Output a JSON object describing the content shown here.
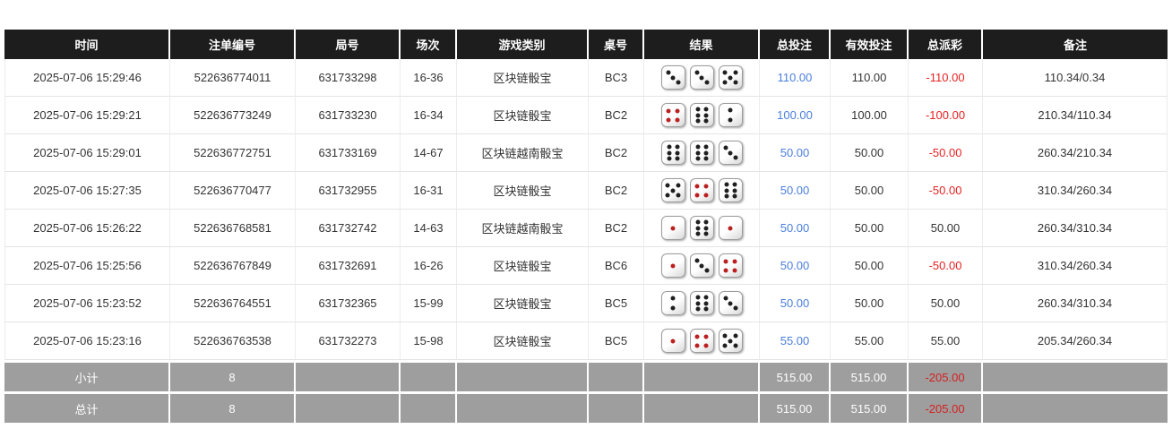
{
  "table": {
    "headers": [
      {
        "key": "time",
        "label": "时间"
      },
      {
        "key": "bet_id",
        "label": "注单编号"
      },
      {
        "key": "round_id",
        "label": "局号"
      },
      {
        "key": "session",
        "label": "场次"
      },
      {
        "key": "game_type",
        "label": "游戏类别"
      },
      {
        "key": "table_no",
        "label": "桌号"
      },
      {
        "key": "result",
        "label": "结果"
      },
      {
        "key": "total_bet",
        "label": "总投注"
      },
      {
        "key": "valid_bet",
        "label": "有效投注"
      },
      {
        "key": "payout",
        "label": "总派彩"
      },
      {
        "key": "remark",
        "label": "备注"
      }
    ],
    "rows": [
      {
        "time": "2025-07-06 15:29:46",
        "bet_id": "522636774011",
        "round_id": "631733298",
        "session": "16-36",
        "game_type": "区块链骰宝",
        "table_no": "BC3",
        "dice": [
          {
            "value": 3,
            "color": "black"
          },
          {
            "value": 3,
            "color": "black"
          },
          {
            "value": 5,
            "color": "black"
          }
        ],
        "total_bet": "110.00",
        "valid_bet": "110.00",
        "payout": "-110.00",
        "remark": "110.34/0.34"
      },
      {
        "time": "2025-07-06 15:29:21",
        "bet_id": "522636773249",
        "round_id": "631733230",
        "session": "16-34",
        "game_type": "区块链骰宝",
        "table_no": "BC2",
        "dice": [
          {
            "value": 4,
            "color": "red"
          },
          {
            "value": 6,
            "color": "black"
          },
          {
            "value": 2,
            "color": "black"
          }
        ],
        "total_bet": "100.00",
        "valid_bet": "100.00",
        "payout": "-100.00",
        "remark": "210.34/110.34"
      },
      {
        "time": "2025-07-06 15:29:01",
        "bet_id": "522636772751",
        "round_id": "631733169",
        "session": "14-67",
        "game_type": "区块链越南骰宝",
        "table_no": "BC2",
        "dice": [
          {
            "value": 6,
            "color": "black"
          },
          {
            "value": 6,
            "color": "black"
          },
          {
            "value": 3,
            "color": "black"
          }
        ],
        "total_bet": "50.00",
        "valid_bet": "50.00",
        "payout": "-50.00",
        "remark": "260.34/210.34"
      },
      {
        "time": "2025-07-06 15:27:35",
        "bet_id": "522636770477",
        "round_id": "631732955",
        "session": "16-31",
        "game_type": "区块链骰宝",
        "table_no": "BC2",
        "dice": [
          {
            "value": 5,
            "color": "black"
          },
          {
            "value": 4,
            "color": "red"
          },
          {
            "value": 6,
            "color": "black"
          }
        ],
        "total_bet": "50.00",
        "valid_bet": "50.00",
        "payout": "-50.00",
        "remark": "310.34/260.34"
      },
      {
        "time": "2025-07-06 15:26:22",
        "bet_id": "522636768581",
        "round_id": "631732742",
        "session": "14-63",
        "game_type": "区块链越南骰宝",
        "table_no": "BC2",
        "dice": [
          {
            "value": 1,
            "color": "red"
          },
          {
            "value": 6,
            "color": "black"
          },
          {
            "value": 1,
            "color": "red"
          }
        ],
        "total_bet": "50.00",
        "valid_bet": "50.00",
        "payout": "50.00",
        "remark": "260.34/310.34"
      },
      {
        "time": "2025-07-06 15:25:56",
        "bet_id": "522636767849",
        "round_id": "631732691",
        "session": "16-26",
        "game_type": "区块链骰宝",
        "table_no": "BC6",
        "dice": [
          {
            "value": 1,
            "color": "red"
          },
          {
            "value": 3,
            "color": "black"
          },
          {
            "value": 4,
            "color": "red"
          }
        ],
        "total_bet": "50.00",
        "valid_bet": "50.00",
        "payout": "-50.00",
        "remark": "310.34/260.34"
      },
      {
        "time": "2025-07-06 15:23:52",
        "bet_id": "522636764551",
        "round_id": "631732365",
        "session": "15-99",
        "game_type": "区块链骰宝",
        "table_no": "BC5",
        "dice": [
          {
            "value": 2,
            "color": "black"
          },
          {
            "value": 6,
            "color": "black"
          },
          {
            "value": 3,
            "color": "black"
          }
        ],
        "total_bet": "50.00",
        "valid_bet": "50.00",
        "payout": "50.00",
        "remark": "260.34/310.34"
      },
      {
        "time": "2025-07-06 15:23:16",
        "bet_id": "522636763538",
        "round_id": "631732273",
        "session": "15-98",
        "game_type": "区块链骰宝",
        "table_no": "BC5",
        "dice": [
          {
            "value": 1,
            "color": "red"
          },
          {
            "value": 4,
            "color": "red"
          },
          {
            "value": 5,
            "color": "black"
          }
        ],
        "total_bet": "55.00",
        "valid_bet": "55.00",
        "payout": "55.00",
        "remark": "205.34/260.34"
      }
    ],
    "summary_rows": [
      {
        "label": "小计",
        "count": "8",
        "total_bet": "515.00",
        "valid_bet": "515.00",
        "payout": "-205.00"
      },
      {
        "label": "总计",
        "count": "8",
        "total_bet": "515.00",
        "valid_bet": "515.00",
        "payout": "-205.00"
      }
    ]
  },
  "colors": {
    "header_bg": "#1d1d1d",
    "summary_bg": "#9e9e9e",
    "bet_blue": "#4a7edd",
    "negative_red": "#e82121",
    "dice_pip_red": "#bb2020",
    "dice_pip_black": "#1f1f1f"
  }
}
